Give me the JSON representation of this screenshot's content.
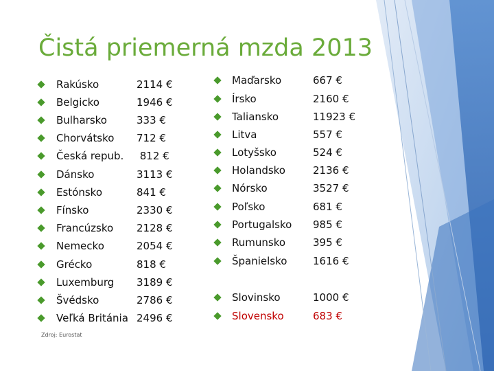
{
  "title": "Čistá priemerná mzda 2013",
  "source": "Zdroj: Eurostat",
  "colors": {
    "title": "#6aab3a",
    "bullet": "#4a9a2c",
    "highlight": "#c00000",
    "decor_blue": "#3b73bd"
  },
  "bullet_icon": "diamond-bullet-icon",
  "left_list": [
    {
      "country": "Rakúsko",
      "value": "2114 €"
    },
    {
      "country": "Belgicko",
      "value": "1946 €"
    },
    {
      "country": "Bulharsko",
      "value": "333 €"
    },
    {
      "country": "Chorvátsko",
      "value": "712 €"
    },
    {
      "country": "Česká repub.",
      "value": " 812 €"
    },
    {
      "country": "Dánsko",
      "value": "3113 €"
    },
    {
      "country": "Estónsko",
      "value": "841 €"
    },
    {
      "country": "Fínsko",
      "value": "2330 €"
    },
    {
      "country": "Francúzsko",
      "value": "2128 €"
    },
    {
      "country": "Nemecko",
      "value": "2054 €"
    },
    {
      "country": "Grécko",
      "value": "818 €"
    },
    {
      "country": "Luxemburg",
      "value": "3189 €"
    },
    {
      "country": "Švédsko",
      "value": "2786 €"
    },
    {
      "country": "Veľká Británia",
      "value": "2496 €"
    }
  ],
  "right_list": [
    {
      "country": "Maďarsko",
      "value": "667 €"
    },
    {
      "country": "Írsko",
      "value": "2160 €"
    },
    {
      "country": "Taliansko",
      "value": "11923 €"
    },
    {
      "country": "Litva",
      "value": "557 €"
    },
    {
      "country": "Lotyšsko",
      "value": "524 €"
    },
    {
      "country": "Holandsko",
      "value": "2136 €"
    },
    {
      "country": "Nórsko",
      "value": "3527 €"
    },
    {
      "country": "Poľsko",
      "value": "681 €"
    },
    {
      "country": "Portugalsko",
      "value": "985 €"
    },
    {
      "country": "Rumunsko",
      "value": "395 €"
    },
    {
      "country": "Španielsko",
      "value": "1616 €"
    },
    {
      "country": "Slovinsko",
      "value": "1000 €"
    },
    {
      "country": "Slovensko",
      "value": "683 €",
      "highlight": true
    }
  ]
}
